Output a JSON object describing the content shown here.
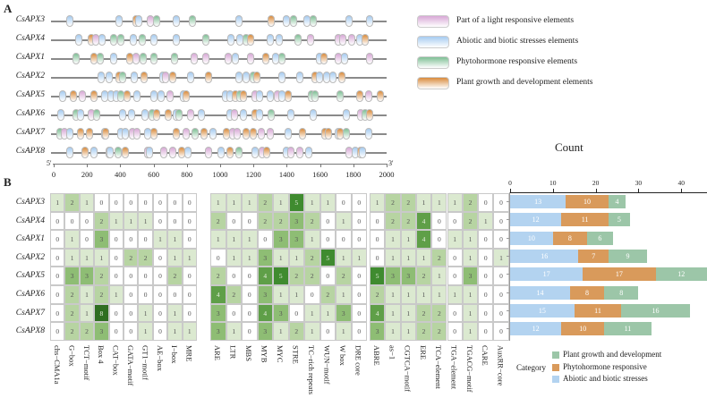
{
  "panelA": {
    "letter": "A",
    "axis": {
      "start_label": "5'",
      "end_label": "3'",
      "ticks": [
        0,
        200,
        400,
        600,
        800,
        1000,
        1200,
        1400,
        1600,
        1800,
        2000
      ]
    },
    "legend": [
      {
        "key": "p",
        "label": "Part of a light responsive elements",
        "color": "#d8a8d6"
      },
      {
        "key": "b",
        "label": "Abiotic and biotic stresses elements",
        "color": "#a6cbf0"
      },
      {
        "key": "g",
        "label": "Phytohormone responsive elements",
        "color": "#7fbf95"
      },
      {
        "key": "o",
        "label": "Plant growth and development elements",
        "color": "#d98b3c"
      }
    ],
    "genes": [
      {
        "name": "CsAPX3",
        "elements": [
          [
            99,
            "b"
          ],
          [
            394,
            "b"
          ],
          [
            493,
            "o"
          ],
          [
            511,
            "b"
          ],
          [
            582,
            "p"
          ],
          [
            618,
            "g"
          ],
          [
            735,
            "b"
          ],
          [
            833,
            "g"
          ],
          [
            1111,
            "b"
          ],
          [
            1308,
            "o"
          ],
          [
            1398,
            "b"
          ],
          [
            1443,
            "g"
          ],
          [
            1523,
            "b"
          ],
          [
            1559,
            "g"
          ],
          [
            1774,
            "b"
          ],
          [
            1900,
            "b"
          ]
        ]
      },
      {
        "name": "CsAPX4",
        "elements": [
          [
            152,
            "b"
          ],
          [
            226,
            "o"
          ],
          [
            253,
            "p"
          ],
          [
            289,
            "b"
          ],
          [
            360,
            "g"
          ],
          [
            405,
            "g"
          ],
          [
            477,
            "b"
          ],
          [
            530,
            "g"
          ],
          [
            602,
            "b"
          ],
          [
            735,
            "b"
          ],
          [
            914,
            "g"
          ],
          [
            1066,
            "b"
          ],
          [
            1120,
            "b"
          ],
          [
            1156,
            "g"
          ],
          [
            1183,
            "o"
          ],
          [
            1299,
            "b"
          ],
          [
            1353,
            "b"
          ],
          [
            1470,
            "g"
          ],
          [
            1541,
            "p"
          ],
          [
            1711,
            "p"
          ],
          [
            1738,
            "p"
          ],
          [
            1792,
            "p"
          ],
          [
            1837,
            "b"
          ],
          [
            1872,
            "o"
          ]
        ]
      },
      {
        "name": "CsAPX1",
        "elements": [
          [
            134,
            "g"
          ],
          [
            242,
            "o"
          ],
          [
            278,
            "g"
          ],
          [
            358,
            "b"
          ],
          [
            457,
            "o"
          ],
          [
            493,
            "p"
          ],
          [
            538,
            "g"
          ],
          [
            600,
            "g"
          ],
          [
            726,
            "g"
          ],
          [
            842,
            "p"
          ],
          [
            914,
            "p"
          ],
          [
            1048,
            "p"
          ],
          [
            1093,
            "b"
          ],
          [
            1183,
            "p"
          ],
          [
            1272,
            "o"
          ],
          [
            1335,
            "b"
          ],
          [
            1371,
            "g"
          ],
          [
            1595,
            "b"
          ],
          [
            1622,
            "o"
          ],
          [
            1711,
            "p"
          ],
          [
            1747,
            "b"
          ],
          [
            1900,
            "p"
          ]
        ]
      },
      {
        "name": "CsAPX2",
        "elements": [
          [
            287,
            "b"
          ],
          [
            332,
            "b"
          ],
          [
            394,
            "o"
          ],
          [
            412,
            "g"
          ],
          [
            484,
            "b"
          ],
          [
            545,
            "o"
          ],
          [
            654,
            "b"
          ],
          [
            672,
            "p"
          ],
          [
            717,
            "o"
          ],
          [
            824,
            "b"
          ],
          [
            932,
            "o"
          ],
          [
            1111,
            "b"
          ],
          [
            1156,
            "b"
          ],
          [
            1201,
            "g"
          ],
          [
            1219,
            "o"
          ],
          [
            1371,
            "b"
          ],
          [
            1478,
            "b"
          ],
          [
            1568,
            "o"
          ],
          [
            1595,
            "b"
          ],
          [
            1640,
            "b"
          ],
          [
            1676,
            "b"
          ],
          [
            1729,
            "o"
          ]
        ]
      },
      {
        "name": "CsAPX5",
        "elements": [
          [
            54,
            "b"
          ],
          [
            118,
            "o"
          ],
          [
            172,
            "p"
          ],
          [
            242,
            "o"
          ],
          [
            305,
            "b"
          ],
          [
            342,
            "b"
          ],
          [
            378,
            "b"
          ],
          [
            405,
            "g"
          ],
          [
            439,
            "o"
          ],
          [
            502,
            "b"
          ],
          [
            600,
            "b"
          ],
          [
            645,
            "b"
          ],
          [
            699,
            "p"
          ],
          [
            780,
            "b"
          ],
          [
            797,
            "o"
          ],
          [
            1030,
            "b"
          ],
          [
            1057,
            "b"
          ],
          [
            1093,
            "o"
          ],
          [
            1120,
            "g"
          ],
          [
            1138,
            "o"
          ],
          [
            1210,
            "p"
          ],
          [
            1237,
            "b"
          ],
          [
            1299,
            "b"
          ],
          [
            1344,
            "p"
          ],
          [
            1371,
            "b"
          ],
          [
            1407,
            "o"
          ],
          [
            1550,
            "g"
          ],
          [
            1568,
            "g"
          ],
          [
            1720,
            "g"
          ],
          [
            1837,
            "o"
          ],
          [
            1891,
            "p"
          ],
          [
            1962,
            "o"
          ]
        ]
      },
      {
        "name": "CsAPX6",
        "elements": [
          [
            45,
            "b"
          ],
          [
            134,
            "g"
          ],
          [
            161,
            "b"
          ],
          [
            224,
            "p"
          ],
          [
            260,
            "g"
          ],
          [
            412,
            "b"
          ],
          [
            466,
            "b"
          ],
          [
            546,
            "b"
          ],
          [
            591,
            "g"
          ],
          [
            618,
            "o"
          ],
          [
            690,
            "o"
          ],
          [
            735,
            "b"
          ],
          [
            753,
            "g"
          ],
          [
            824,
            "p"
          ],
          [
            887,
            "b"
          ],
          [
            1057,
            "b"
          ],
          [
            1084,
            "p"
          ],
          [
            1138,
            "b"
          ],
          [
            1210,
            "o"
          ],
          [
            1237,
            "b"
          ],
          [
            1308,
            "g"
          ],
          [
            1425,
            "b"
          ],
          [
            1559,
            "b"
          ],
          [
            1756,
            "b"
          ],
          [
            1846,
            "p"
          ],
          [
            1873,
            "g"
          ],
          [
            1900,
            "o"
          ]
        ]
      },
      {
        "name": "CsAPX7",
        "elements": [
          [
            36,
            "g"
          ],
          [
            63,
            "p"
          ],
          [
            99,
            "b"
          ],
          [
            161,
            "o"
          ],
          [
            215,
            "o"
          ],
          [
            305,
            "b"
          ],
          [
            314,
            "o"
          ],
          [
            403,
            "b"
          ],
          [
            430,
            "b"
          ],
          [
            475,
            "p"
          ],
          [
            502,
            "p"
          ],
          [
            565,
            "b"
          ],
          [
            600,
            "o"
          ],
          [
            735,
            "o"
          ],
          [
            797,
            "p"
          ],
          [
            851,
            "g"
          ],
          [
            905,
            "o"
          ],
          [
            959,
            "b"
          ],
          [
            1039,
            "o"
          ],
          [
            1075,
            "p"
          ],
          [
            1102,
            "p"
          ],
          [
            1156,
            "o"
          ],
          [
            1201,
            "o"
          ],
          [
            1246,
            "p"
          ],
          [
            1299,
            "p"
          ],
          [
            1407,
            "b"
          ],
          [
            1496,
            "o"
          ],
          [
            1631,
            "o"
          ],
          [
            1649,
            "o"
          ],
          [
            1712,
            "b"
          ],
          [
            1720,
            "o"
          ],
          [
            1756,
            "g"
          ],
          [
            1890,
            "b"
          ]
        ]
      },
      {
        "name": "CsAPX8",
        "elements": [
          [
            99,
            "b"
          ],
          [
            188,
            "o"
          ],
          [
            242,
            "b"
          ],
          [
            332,
            "p"
          ],
          [
            341,
            "b"
          ],
          [
            385,
            "g"
          ],
          [
            430,
            "o"
          ],
          [
            564,
            "p"
          ],
          [
            573,
            "b"
          ],
          [
            663,
            "p"
          ],
          [
            717,
            "p"
          ],
          [
            771,
            "o"
          ],
          [
            806,
            "b"
          ],
          [
            932,
            "p"
          ],
          [
            1004,
            "b"
          ],
          [
            1057,
            "o"
          ],
          [
            1111,
            "g"
          ],
          [
            1210,
            "b"
          ],
          [
            1254,
            "p"
          ],
          [
            1281,
            "o"
          ],
          [
            1398,
            "b"
          ],
          [
            1425,
            "p"
          ],
          [
            1478,
            "p"
          ],
          [
            1532,
            "b"
          ],
          [
            1774,
            "p"
          ],
          [
            1810,
            "b"
          ],
          [
            1846,
            "o"
          ],
          [
            1855,
            "b"
          ]
        ]
      }
    ]
  },
  "panelB": {
    "letter": "B",
    "rows": [
      "CsAPX3",
      "CsAPX4",
      "CsAPX1",
      "CsAPX2",
      "CsAPX5",
      "CsAPX6",
      "CsAPX7",
      "CsAPX8"
    ],
    "heatmaps": [
      {
        "columns": [
          "chs−CMA1a",
          "G−box",
          "TCT−motif",
          "Box 4",
          "CAT−box",
          "GATA−motif",
          "GT1−motif",
          "AE−box",
          "I−box",
          "MRE"
        ],
        "values": [
          [
            1,
            2,
            1,
            0,
            0,
            0,
            0,
            0,
            0,
            0
          ],
          [
            0,
            0,
            0,
            2,
            1,
            1,
            1,
            0,
            0,
            0
          ],
          [
            0,
            1,
            0,
            3,
            0,
            0,
            0,
            1,
            1,
            0
          ],
          [
            0,
            1,
            1,
            1,
            0,
            2,
            2,
            0,
            1,
            1
          ],
          [
            0,
            3,
            3,
            2,
            0,
            0,
            0,
            0,
            2,
            0
          ],
          [
            0,
            2,
            1,
            2,
            1,
            0,
            0,
            0,
            0,
            0
          ],
          [
            0,
            2,
            1,
            8,
            0,
            0,
            1,
            0,
            1,
            0
          ],
          [
            0,
            2,
            2,
            3,
            0,
            0,
            1,
            0,
            1,
            1
          ]
        ]
      },
      {
        "columns": [
          "ARE",
          "LTR",
          "MBS",
          "MYB",
          "MYC",
          "STRE",
          "TC−rich repeats",
          "WUN−motif",
          "W box",
          "DRE core"
        ],
        "values": [
          [
            1,
            1,
            1,
            2,
            1,
            5,
            1,
            1,
            0,
            0
          ],
          [
            2,
            0,
            0,
            2,
            2,
            3,
            2,
            0,
            1,
            0
          ],
          [
            1,
            1,
            1,
            0,
            3,
            3,
            1,
            0,
            0,
            0
          ],
          [
            0,
            1,
            1,
            3,
            1,
            1,
            2,
            5,
            1,
            1
          ],
          [
            2,
            0,
            0,
            4,
            5,
            2,
            2,
            0,
            2,
            0
          ],
          [
            4,
            2,
            0,
            3,
            1,
            1,
            0,
            2,
            1,
            0
          ],
          [
            3,
            0,
            0,
            4,
            3,
            0,
            1,
            1,
            3,
            0
          ],
          [
            3,
            1,
            0,
            3,
            1,
            2,
            1,
            0,
            1,
            0
          ]
        ]
      },
      {
        "columns": [
          "ABRE",
          "as−1",
          "CGTCA−motif",
          "ERE",
          "TCA−element",
          "TGA−element",
          "TGACG−motif",
          "CARE",
          "AuxRR−core"
        ],
        "values": [
          [
            1,
            2,
            2,
            1,
            1,
            1,
            2,
            0,
            0
          ],
          [
            0,
            2,
            2,
            4,
            0,
            0,
            2,
            1,
            0
          ],
          [
            0,
            1,
            1,
            4,
            0,
            1,
            1,
            0,
            0
          ],
          [
            0,
            1,
            1,
            1,
            2,
            0,
            1,
            0,
            1
          ],
          [
            5,
            3,
            3,
            2,
            1,
            0,
            3,
            0,
            0
          ],
          [
            2,
            1,
            1,
            1,
            1,
            1,
            1,
            0,
            0
          ],
          [
            4,
            1,
            1,
            2,
            2,
            0,
            1,
            0,
            0
          ],
          [
            3,
            1,
            1,
            2,
            2,
            0,
            1,
            0,
            0
          ]
        ]
      }
    ],
    "heat_colors": [
      "#ffffff",
      "#dbe9d0",
      "#b7d4a2",
      "#8ebd74",
      "#5f9f48",
      "#3f8b2f",
      "#3a8229",
      "#357a25",
      "#2f6e21"
    ]
  },
  "chart_data": {
    "type": "bar",
    "orientation": "horizontal-stacked",
    "title": "Count",
    "categories": [
      "CsAPX3",
      "CsAPX4",
      "CsAPX1",
      "CsAPX2",
      "CsAPX5",
      "CsAPX6",
      "CsAPX7",
      "CsAPX8"
    ],
    "xlim": [
      0,
      45
    ],
    "xticks": [
      0,
      10,
      20,
      30,
      40
    ],
    "legend_title": "Category",
    "legend_position": "bottom",
    "series": [
      {
        "name": "Abiotic and biotic stresses",
        "color": "#b3d3f0",
        "values": [
          13,
          12,
          10,
          16,
          17,
          14,
          15,
          12
        ]
      },
      {
        "name": "Phytohormone responsive",
        "color": "#d99a5b",
        "values": [
          10,
          11,
          8,
          7,
          17,
          8,
          11,
          10
        ]
      },
      {
        "name": "Plant growth and development",
        "color": "#9cc6a8",
        "values": [
          4,
          5,
          6,
          9,
          12,
          8,
          16,
          11
        ]
      }
    ],
    "legend_order": [
      2,
      1,
      0
    ]
  }
}
